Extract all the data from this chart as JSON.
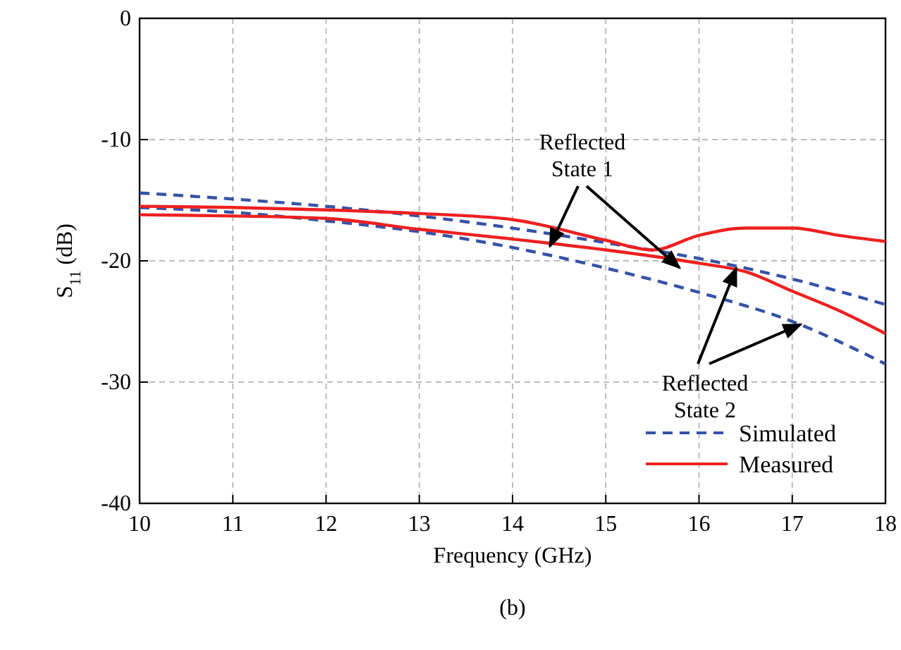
{
  "chart_data": {
    "type": "line",
    "xlabel": "Frequency (GHz)",
    "ylabel": "S$_{11}$ (dB)",
    "xlim": [
      10,
      18
    ],
    "xticks": [
      10,
      11,
      12,
      13,
      14,
      15,
      16,
      17,
      18
    ],
    "ylim": [
      -40,
      0
    ],
    "yticks": [
      -40,
      -30,
      -20,
      -10,
      0
    ],
    "grid": true,
    "legend": "bottom right",
    "series": [
      {
        "name": "Simulated",
        "color": "#3652a8",
        "line_style": "dashed",
        "x": [
          10,
          11,
          12,
          13,
          14,
          15,
          16,
          17,
          18
        ],
        "values": [
          -14.4,
          -14.9,
          -15.5,
          -16.3,
          -17.3,
          -18.5,
          -19.8,
          -21.5,
          -23.6
        ]
      },
      {
        "color": "#3652a8",
        "line_style": "dashed",
        "x": [
          10,
          11,
          12,
          13,
          14,
          15,
          16,
          17,
          18
        ],
        "values": [
          -15.6,
          -16.0,
          -16.7,
          -17.6,
          -18.9,
          -20.6,
          -22.6,
          -25.0,
          -28.5
        ]
      },
      {
        "name": "Measured",
        "color": "#ee2020",
        "line_style": "solid",
        "x": [
          10,
          11,
          12,
          13,
          14,
          15,
          15.5,
          16,
          16.5,
          17,
          17.5,
          18
        ],
        "values": [
          -15.5,
          -15.6,
          -15.8,
          -16.1,
          -16.6,
          -18.3,
          -19.1,
          -17.9,
          -17.3,
          -17.3,
          -17.9,
          -18.4
        ]
      },
      {
        "color": "#ee2020",
        "line_style": "solid",
        "x": [
          10,
          11,
          12,
          13,
          14,
          15,
          16,
          16.5,
          17,
          17.5,
          18
        ],
        "values": [
          -16.2,
          -16.3,
          -16.5,
          -17.4,
          -18.2,
          -19.1,
          -20.2,
          -20.9,
          -22.5,
          -24.1,
          -26.0
        ]
      }
    ],
    "annotations": [
      {
        "text": "Reflected\nState 1",
        "x": 14.4,
        "y": -18.8
      },
      {
        "text": "Reflected\nState 2",
        "x": 16.4,
        "y": -20.6
      },
      "(b)"
    ]
  }
}
